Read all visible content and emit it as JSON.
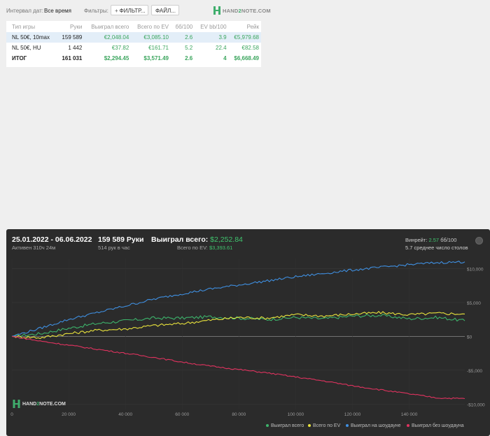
{
  "filters": {
    "date_label": "Интервал дат:",
    "date_value": "Все время",
    "filters_label": "Фильтры:",
    "filter_button": "ФИЛЬТР...",
    "file_button": "ФАЙЛ..."
  },
  "brand": {
    "prefix": "HAND",
    "digit": "2",
    "suffix": "NOTE.COM"
  },
  "table": {
    "headers": [
      "Тип игры",
      "Руки",
      "Выиграл всего",
      "Всего по EV",
      "бб/100",
      "EV bb/100",
      "Рейк"
    ],
    "rows": [
      [
        "NL 50€, 10max",
        "159 589",
        "€2,048.04",
        "€3,085.10",
        "2.6",
        "3.9",
        "€5,979.68"
      ],
      [
        "NL 50€, HU",
        "1 442",
        "€37.82",
        "€161.71",
        "5.2",
        "22.4",
        "€82.58"
      ],
      [
        "ИТОГ",
        "161 031",
        "$2,294.45",
        "$3,571.49",
        "2.6",
        "4",
        "$6,668.49"
      ]
    ]
  },
  "panel": {
    "date_range": "25.01.2022 - 06.06.2022",
    "active": "Активен 310ч 24м",
    "hands": "159 589 Руки",
    "per_hour": "514 рук в час",
    "won_label": "Выиграл всего:",
    "won_value": "$2,252.84",
    "ev_label": "Всего по EV:",
    "ev_value": "$3,393.61",
    "winrate_label": "Винрейт:",
    "winrate_value": "2.57",
    "winrate_unit": "бб/100",
    "avg_tables": "5.7 среднее число столов"
  },
  "colors": {
    "total": "#3db36b",
    "ev": "#e8e23c",
    "showdown": "#3f8fe0",
    "non_showdown": "#e0335f"
  },
  "chart_data": {
    "type": "line",
    "x_ticks": [
      0,
      20000,
      40000,
      60000,
      80000,
      100000,
      120000,
      140000
    ],
    "x_tick_labels": [
      "0",
      "20 000",
      "40 000",
      "60 000",
      "80 000",
      "100 000",
      "120 000",
      "140 000"
    ],
    "y_ticks": [
      10000,
      5000,
      0,
      -5000,
      -10000
    ],
    "y_tick_labels": [
      "$10,000",
      "$5,000",
      "$0",
      "-$5,000",
      "-$10,000"
    ],
    "xlim": [
      0,
      159589
    ],
    "ylim": [
      -10800,
      11500
    ],
    "x": [
      0,
      10000,
      20000,
      30000,
      40000,
      50000,
      60000,
      70000,
      80000,
      90000,
      100000,
      110000,
      120000,
      130000,
      140000,
      150000,
      159589
    ],
    "series": [
      {
        "name": "Выиграл всего",
        "color_key": "total",
        "values": [
          0,
          400,
          1200,
          1900,
          2300,
          2700,
          2700,
          2900,
          2700,
          2500,
          2800,
          2600,
          3000,
          3100,
          2600,
          2800,
          2300
        ]
      },
      {
        "name": "Всего по EV",
        "color_key": "ev",
        "values": [
          0,
          -200,
          400,
          900,
          1100,
          1600,
          1900,
          2400,
          2800,
          2700,
          3200,
          3000,
          3300,
          3500,
          3200,
          3400,
          3300
        ]
      },
      {
        "name": "Выиграл на шоудауне",
        "color_key": "showdown",
        "values": [
          0,
          1200,
          2500,
          3500,
          4500,
          5500,
          6300,
          7000,
          7600,
          8200,
          8800,
          9300,
          9800,
          10200,
          10600,
          10900,
          11000
        ]
      },
      {
        "name": "Выиграл без шоудауна",
        "color_key": "non_showdown",
        "values": [
          0,
          -700,
          -1300,
          -1900,
          -2500,
          -3100,
          -3800,
          -4400,
          -4900,
          -5400,
          -6000,
          -6600,
          -7300,
          -7900,
          -8500,
          -9100,
          -9200
        ]
      }
    ]
  }
}
